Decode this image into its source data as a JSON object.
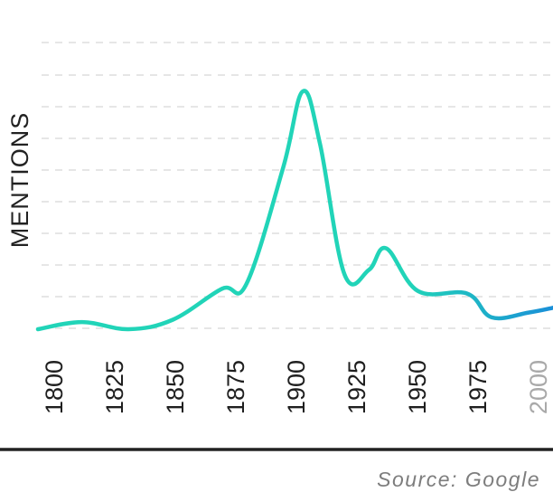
{
  "chart_data": {
    "type": "line",
    "title": "",
    "xlabel": "",
    "ylabel": "MENTIONS",
    "source": "Source: Google",
    "grid": true,
    "xlim": [
      1800,
      2010
    ],
    "ylim": [
      0,
      100
    ],
    "x_ticks": [
      {
        "label": "1800",
        "value": 1800,
        "muted": false
      },
      {
        "label": "1825",
        "value": 1825,
        "muted": false
      },
      {
        "label": "1850",
        "value": 1850,
        "muted": false
      },
      {
        "label": "1875",
        "value": 1875,
        "muted": false
      },
      {
        "label": "1900",
        "value": 1900,
        "muted": false
      },
      {
        "label": "1925",
        "value": 1925,
        "muted": false
      },
      {
        "label": "1950",
        "value": 1950,
        "muted": false
      },
      {
        "label": "1975",
        "value": 1975,
        "muted": false
      },
      {
        "label": "2000",
        "value": 2000,
        "muted": true
      }
    ],
    "series": [
      {
        "color_start": "#21d4b8",
        "color_end": "#1a8fd8",
        "points": [
          {
            "x": 1800,
            "y": 0
          },
          {
            "x": 1818,
            "y": 3
          },
          {
            "x": 1837,
            "y": 0
          },
          {
            "x": 1855,
            "y": 4
          },
          {
            "x": 1875,
            "y": 17
          },
          {
            "x": 1885,
            "y": 19
          },
          {
            "x": 1900,
            "y": 68
          },
          {
            "x": 1908,
            "y": 100
          },
          {
            "x": 1915,
            "y": 78
          },
          {
            "x": 1925,
            "y": 23
          },
          {
            "x": 1935,
            "y": 25
          },
          {
            "x": 1942,
            "y": 34
          },
          {
            "x": 1955,
            "y": 16
          },
          {
            "x": 1975,
            "y": 15
          },
          {
            "x": 1985,
            "y": 5
          },
          {
            "x": 2000,
            "y": 7
          },
          {
            "x": 2010,
            "y": 9
          }
        ]
      }
    ]
  }
}
